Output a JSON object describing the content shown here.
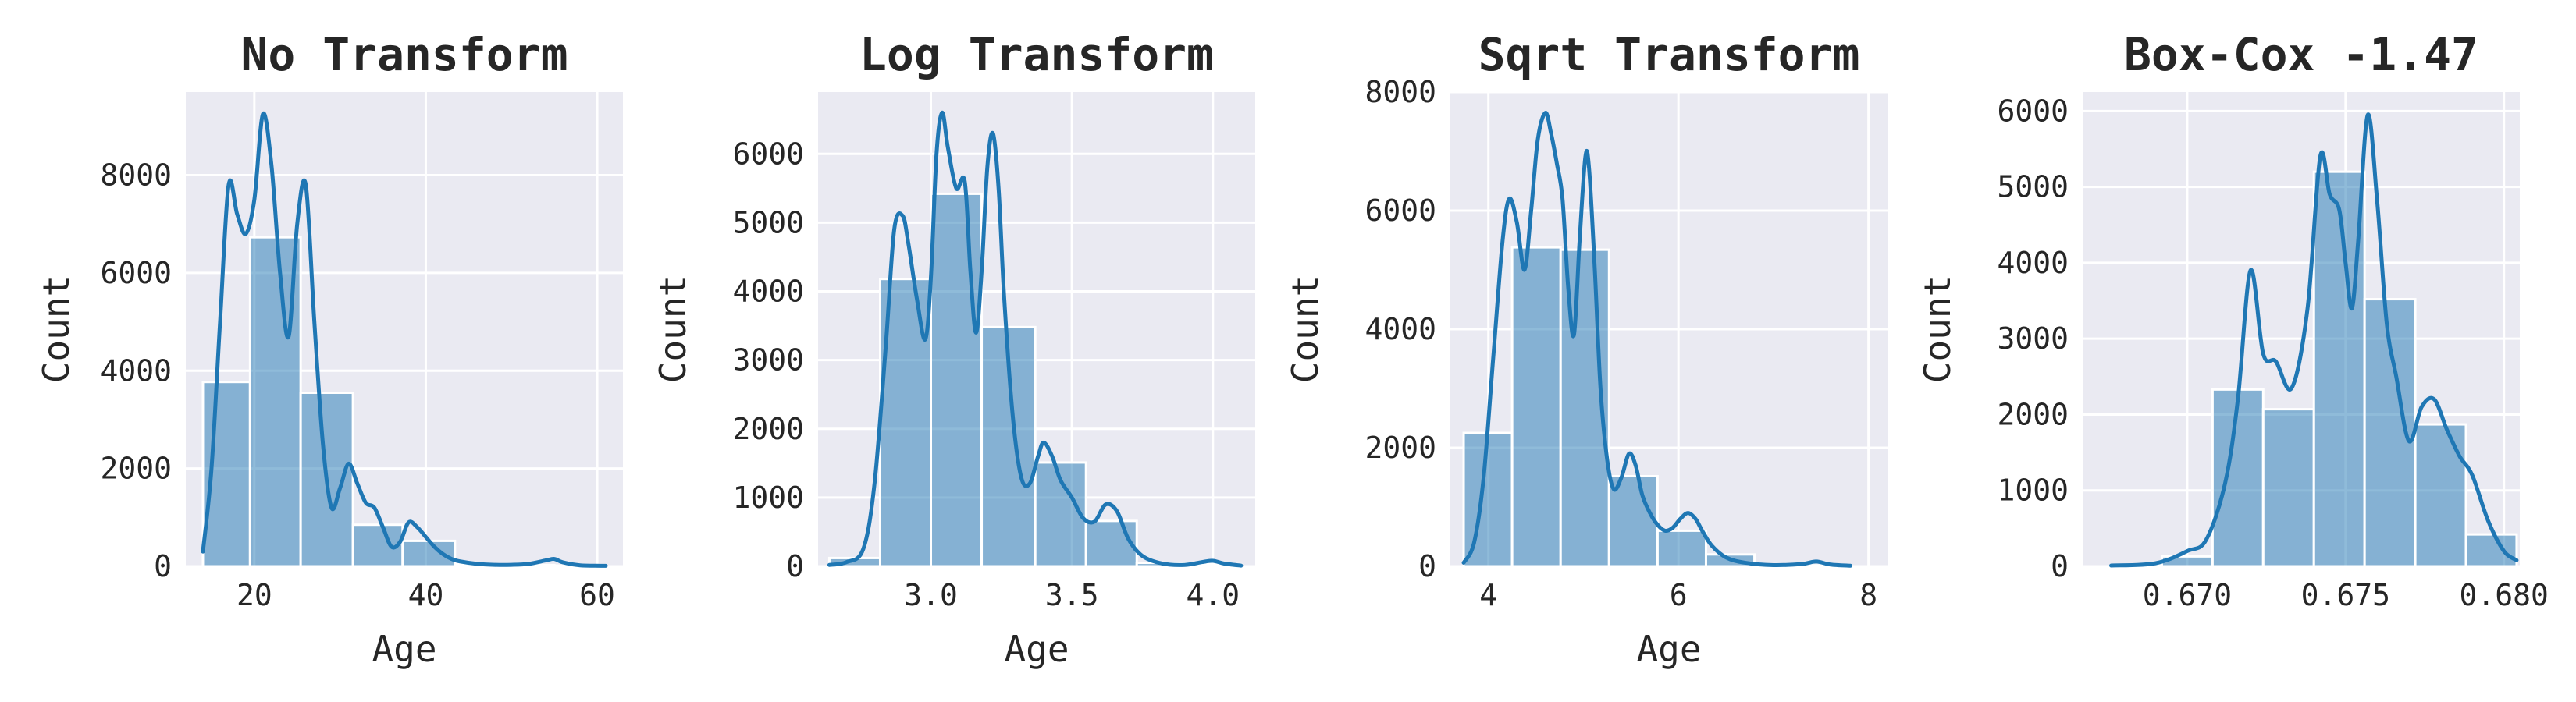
{
  "chart_data": [
    {
      "type": "bar",
      "subtype": "histogram",
      "title": "No Transform",
      "xlabel": "Age",
      "ylabel": "Count",
      "xlim": [
        12,
        63
      ],
      "ylim": [
        0,
        9700
      ],
      "xticks": [
        20,
        40,
        60
      ],
      "xtick_labels": [
        "20",
        "40",
        "60"
      ],
      "yticks": [
        0,
        2000,
        4000,
        6000,
        8000
      ],
      "ytick_labels": [
        "0",
        "2000",
        "4000",
        "6000",
        "8000"
      ],
      "bins": [
        {
          "start": 14.0,
          "end": 19.5,
          "count": 3770
        },
        {
          "start": 19.5,
          "end": 25.4,
          "count": 6730
        },
        {
          "start": 25.4,
          "end": 31.5,
          "count": 3550
        },
        {
          "start": 31.5,
          "end": 37.3,
          "count": 850
        },
        {
          "start": 37.3,
          "end": 43.4,
          "count": 520
        },
        {
          "start": 43.4,
          "end": 49.2,
          "count": 40
        },
        {
          "start": 49.2,
          "end": 55.0,
          "count": 25
        },
        {
          "start": 55.0,
          "end": 61.0,
          "count": 15
        }
      ],
      "kde": {
        "x": [
          14,
          15,
          16,
          17,
          18,
          19,
          20,
          21,
          22,
          23,
          24,
          25,
          26,
          27,
          28,
          29,
          30,
          31,
          32,
          33,
          34,
          35,
          36,
          37,
          38,
          39,
          40,
          41,
          42,
          43,
          44,
          46,
          48,
          50,
          52,
          54,
          55,
          56,
          58,
          61
        ],
        "y": [
          300,
          2000,
          5000,
          7800,
          7200,
          6800,
          7500,
          9250,
          8200,
          6000,
          4700,
          7000,
          7800,
          5000,
          2500,
          1200,
          1600,
          2100,
          1700,
          1300,
          1200,
          800,
          400,
          500,
          900,
          800,
          600,
          400,
          250,
          150,
          100,
          50,
          30,
          30,
          50,
          120,
          150,
          80,
          20,
          10
        ]
      },
      "grid": true,
      "legend": "none"
    },
    {
      "type": "bar",
      "subtype": "histogram",
      "title": "Log Transform",
      "xlabel": "Age",
      "ylabel": "Count",
      "xlim": [
        2.6,
        4.15
      ],
      "ylim": [
        0,
        6900
      ],
      "xticks": [
        3.0,
        3.5,
        4.0
      ],
      "xtick_labels": [
        "3.0",
        "3.5",
        "4.0"
      ],
      "yticks": [
        0,
        1000,
        2000,
        3000,
        4000,
        5000,
        6000
      ],
      "ytick_labels": [
        "0",
        "1000",
        "2000",
        "3000",
        "4000",
        "5000",
        "6000"
      ],
      "bins": [
        {
          "start": 2.64,
          "end": 2.82,
          "count": 120
        },
        {
          "start": 2.82,
          "end": 3.0,
          "count": 4180
        },
        {
          "start": 3.0,
          "end": 3.18,
          "count": 5420
        },
        {
          "start": 3.18,
          "end": 3.37,
          "count": 3480
        },
        {
          "start": 3.37,
          "end": 3.55,
          "count": 1510
        },
        {
          "start": 3.55,
          "end": 3.73,
          "count": 660
        },
        {
          "start": 3.73,
          "end": 3.92,
          "count": 50
        },
        {
          "start": 3.92,
          "end": 4.1,
          "count": 30
        }
      ],
      "kde": {
        "x": [
          2.64,
          2.7,
          2.76,
          2.8,
          2.84,
          2.87,
          2.9,
          2.92,
          2.95,
          2.98,
          3.0,
          3.02,
          3.04,
          3.06,
          3.09,
          3.12,
          3.14,
          3.16,
          3.18,
          3.2,
          3.22,
          3.24,
          3.26,
          3.29,
          3.32,
          3.35,
          3.38,
          3.4,
          3.43,
          3.46,
          3.5,
          3.54,
          3.58,
          3.62,
          3.66,
          3.7,
          3.75,
          3.82,
          3.9,
          3.96,
          4.0,
          4.04,
          4.1
        ],
        "y": [
          20,
          60,
          250,
          1200,
          3200,
          4900,
          5100,
          4700,
          3900,
          3300,
          4200,
          6000,
          6600,
          6100,
          5500,
          5600,
          4300,
          3400,
          4300,
          5800,
          6300,
          5500,
          3900,
          2200,
          1300,
          1200,
          1600,
          1800,
          1600,
          1250,
          1000,
          700,
          650,
          900,
          800,
          400,
          150,
          40,
          20,
          60,
          80,
          40,
          10
        ]
      },
      "grid": true,
      "legend": "none"
    },
    {
      "type": "bar",
      "subtype": "histogram",
      "title": "Sqrt Transform",
      "xlabel": "Age",
      "ylabel": "Count",
      "xlim": [
        3.6,
        8.2
      ],
      "ylim": [
        0,
        8000
      ],
      "xticks": [
        4,
        6,
        8
      ],
      "xtick_labels": [
        "4",
        "6",
        "8"
      ],
      "yticks": [
        0,
        2000,
        4000,
        6000,
        8000
      ],
      "ytick_labels": [
        "0",
        "2000",
        "4000",
        "6000",
        "8000"
      ],
      "bins": [
        {
          "start": 3.74,
          "end": 4.25,
          "count": 2250
        },
        {
          "start": 4.25,
          "end": 4.76,
          "count": 5380
        },
        {
          "start": 4.76,
          "end": 5.27,
          "count": 5340
        },
        {
          "start": 5.27,
          "end": 5.78,
          "count": 1520
        },
        {
          "start": 5.78,
          "end": 6.29,
          "count": 600
        },
        {
          "start": 6.29,
          "end": 6.8,
          "count": 200
        },
        {
          "start": 6.8,
          "end": 7.3,
          "count": 20
        },
        {
          "start": 7.3,
          "end": 7.81,
          "count": 15
        }
      ],
      "kde": {
        "x": [
          3.74,
          3.85,
          3.95,
          4.05,
          4.15,
          4.22,
          4.3,
          4.38,
          4.45,
          4.52,
          4.6,
          4.66,
          4.72,
          4.78,
          4.84,
          4.9,
          4.96,
          5.02,
          5.06,
          5.12,
          5.18,
          5.25,
          5.32,
          5.4,
          5.48,
          5.55,
          5.62,
          5.7,
          5.78,
          5.86,
          5.94,
          6.02,
          6.1,
          6.18,
          6.25,
          6.35,
          6.5,
          6.7,
          7.0,
          7.3,
          7.45,
          7.6,
          7.81
        ],
        "y": [
          60,
          400,
          1500,
          3500,
          5500,
          6200,
          5800,
          5000,
          6000,
          7200,
          7650,
          7300,
          6800,
          6200,
          4700,
          3900,
          5500,
          6900,
          6700,
          5000,
          3000,
          1800,
          1300,
          1500,
          1900,
          1700,
          1200,
          900,
          700,
          600,
          650,
          800,
          900,
          800,
          600,
          350,
          150,
          60,
          20,
          40,
          80,
          30,
          10
        ]
      },
      "grid": true,
      "legend": "none"
    },
    {
      "type": "bar",
      "subtype": "histogram",
      "title": "Box-Cox -1.47",
      "xlabel": "",
      "ylabel": "Count",
      "xlim": [
        0.6667,
        0.6805
      ],
      "ylim": [
        0,
        6250
      ],
      "xticks": [
        0.67,
        0.675,
        0.68
      ],
      "xtick_labels": [
        "0.670",
        "0.675",
        "0.680"
      ],
      "yticks": [
        0,
        1000,
        2000,
        3000,
        4000,
        5000,
        6000
      ],
      "ytick_labels": [
        "0",
        "1000",
        "2000",
        "3000",
        "4000",
        "5000",
        "6000"
      ],
      "bins": [
        {
          "start": 0.6676,
          "end": 0.6692,
          "count": 20
        },
        {
          "start": 0.6692,
          "end": 0.6708,
          "count": 130
        },
        {
          "start": 0.6708,
          "end": 0.6724,
          "count": 2330
        },
        {
          "start": 0.6724,
          "end": 0.674,
          "count": 2070
        },
        {
          "start": 0.674,
          "end": 0.6756,
          "count": 5200
        },
        {
          "start": 0.6756,
          "end": 0.6772,
          "count": 3520
        },
        {
          "start": 0.6772,
          "end": 0.6788,
          "count": 1870
        },
        {
          "start": 0.6788,
          "end": 0.6804,
          "count": 420
        }
      ],
      "kde": {
        "x": [
          0.6676,
          0.669,
          0.67,
          0.6706,
          0.6712,
          0.6716,
          0.672,
          0.6724,
          0.6728,
          0.6733,
          0.6738,
          0.6742,
          0.6745,
          0.6748,
          0.675,
          0.6752,
          0.6754,
          0.6757,
          0.676,
          0.6763,
          0.6766,
          0.677,
          0.6774,
          0.6778,
          0.6782,
          0.6786,
          0.679,
          0.6795,
          0.68,
          0.6804
        ],
        "y": [
          10,
          40,
          200,
          350,
          1100,
          2200,
          3900,
          2800,
          2700,
          2350,
          3400,
          5400,
          4900,
          4700,
          4000,
          3400,
          4300,
          5950,
          4800,
          3200,
          2500,
          1650,
          2100,
          2200,
          1800,
          1450,
          1200,
          600,
          200,
          80
        ]
      },
      "grid": true,
      "legend": "none"
    }
  ]
}
